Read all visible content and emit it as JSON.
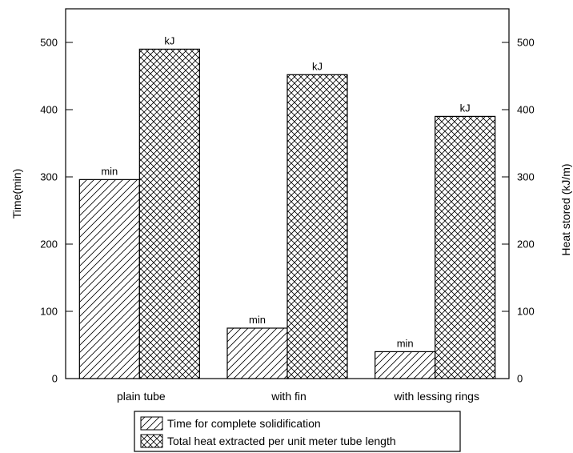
{
  "chart_data": {
    "type": "bar",
    "categories": [
      "plain tube",
      "with fin",
      "with lessing rings"
    ],
    "series": [
      {
        "name": "Time for complete solidification",
        "values": [
          296,
          75,
          40
        ],
        "bar_label": "min",
        "axis": "left",
        "pattern": "diagonal-hatch"
      },
      {
        "name": "Total heat extracted per unit meter tube length",
        "values": [
          490,
          452,
          390
        ],
        "bar_label": "kJ",
        "axis": "right",
        "pattern": "cross-hatch"
      }
    ],
    "ylabel": "Time(min)",
    "y2label": "Heat stored (kJ/m)",
    "ylim": [
      0,
      550
    ],
    "y2lim": [
      0,
      550
    ],
    "yticks": [
      0,
      100,
      200,
      300,
      400,
      500
    ],
    "grid": false,
    "legend_position": "bottom"
  },
  "colors": {
    "ink": "#000000",
    "background": "#ffffff"
  }
}
